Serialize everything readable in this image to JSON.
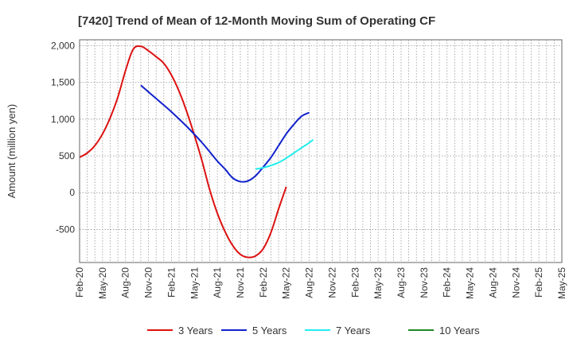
{
  "chart_data": {
    "type": "line",
    "title": "[7420]  Trend of Mean of 12-Month Moving Sum of Operating CF",
    "xlabel": "",
    "ylabel": "Amount (million yen)",
    "ylim": [
      -950,
      2080
    ],
    "yticks": [
      2000,
      1500,
      1000,
      500,
      0,
      -500
    ],
    "ytick_labels": [
      "2,000",
      "1,500",
      "1,000",
      "500",
      "0",
      "-500"
    ],
    "x_labels": [
      "Feb-20",
      "May-20",
      "Aug-20",
      "Nov-20",
      "Feb-21",
      "May-21",
      "Aug-21",
      "Nov-21",
      "Feb-22",
      "May-22",
      "Aug-22",
      "Nov-22",
      "Feb-23",
      "May-23",
      "Aug-23",
      "Nov-23",
      "Feb-24",
      "May-24",
      "Aug-24",
      "Nov-24",
      "Feb-25",
      "May-25"
    ],
    "grid": true,
    "series": [
      {
        "name": "3 Years",
        "color": "#dd1111",
        "points": [
          [
            0,
            480
          ],
          [
            1,
            540
          ],
          [
            2,
            640
          ],
          [
            3,
            800
          ],
          [
            4,
            1020
          ],
          [
            5,
            1300
          ],
          [
            6,
            1660
          ],
          [
            7,
            1950
          ],
          [
            8,
            1990
          ],
          [
            9,
            1930
          ],
          [
            10,
            1850
          ],
          [
            11,
            1760
          ],
          [
            12,
            1600
          ],
          [
            13,
            1380
          ],
          [
            14,
            1100
          ],
          [
            15,
            780
          ],
          [
            16,
            430
          ],
          [
            17,
            40
          ],
          [
            18,
            -280
          ],
          [
            19,
            -530
          ],
          [
            20,
            -720
          ],
          [
            21,
            -840
          ],
          [
            22,
            -880
          ],
          [
            23,
            -860
          ],
          [
            24,
            -760
          ],
          [
            25,
            -540
          ],
          [
            26,
            -220
          ],
          [
            27,
            80
          ]
        ]
      },
      {
        "name": "5 Years",
        "color": "#1122cc",
        "points": [
          [
            8,
            1460
          ],
          [
            10,
            1280
          ],
          [
            12,
            1100
          ],
          [
            14,
            900
          ],
          [
            16,
            680
          ],
          [
            18,
            430
          ],
          [
            19,
            320
          ],
          [
            20,
            200
          ],
          [
            21,
            150
          ],
          [
            22,
            160
          ],
          [
            23,
            230
          ],
          [
            24,
            350
          ],
          [
            25,
            480
          ],
          [
            26,
            640
          ],
          [
            27,
            800
          ],
          [
            28,
            930
          ],
          [
            29,
            1040
          ],
          [
            30,
            1090
          ]
        ]
      },
      {
        "name": "7 Years",
        "color": "#22eeee",
        "points": [
          [
            23,
            320
          ],
          [
            24,
            340
          ],
          [
            25,
            370
          ],
          [
            26,
            410
          ],
          [
            27,
            470
          ],
          [
            28,
            540
          ],
          [
            29,
            610
          ],
          [
            30,
            680
          ],
          [
            30.5,
            720
          ]
        ]
      },
      {
        "name": "10 Years",
        "color": "#228822",
        "points": []
      }
    ]
  }
}
